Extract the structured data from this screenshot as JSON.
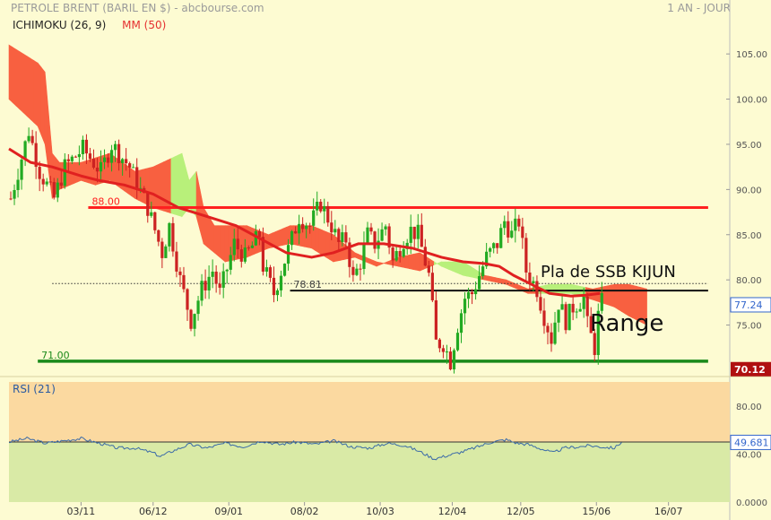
{
  "header": {
    "title": "PETROLE BRENT (BARIL EN $) - abcbourse.com",
    "period": "1 AN - JOUR"
  },
  "legend": {
    "ichimoku": "ICHIMOKU (26, 9)",
    "mm": "MM (50)"
  },
  "colors": {
    "background": "#fdfbd2",
    "kumo_bearish": "#f86040",
    "kumo_bullish": "#b8f07a",
    "ma50": "#e02020",
    "candle_up": "#22aa22",
    "candle_down": "#cc2222",
    "resistance_line": "#ff2020",
    "support_line": "#1a8a1a",
    "kijun_line": "#111111",
    "rsi_line": "#3a6aa8",
    "rsi_upper_zone": "#fbd9a0",
    "rsi_lower_zone": "#d9eaa6",
    "price_badge": "#3366cc",
    "support_badge": "#b01010"
  },
  "chart_data": [
    {
      "type": "candlestick",
      "title": "PETROLE BRENT (BARIL EN $) - abcbourse.com",
      "x_tick_labels": [
        "03/11",
        "06/12",
        "09/01",
        "08/02",
        "10/03",
        "12/04",
        "12/05",
        "15/06",
        "16/07"
      ],
      "y_ticks": [
        75,
        80,
        85,
        90,
        95,
        100,
        105
      ],
      "y_tick_labels": [
        "75.00",
        "80.00",
        "85.00",
        "90.00",
        "95.00",
        "100.00",
        "105.00"
      ],
      "ylim": [
        69.5,
        107
      ],
      "grid": true,
      "indicators": [
        "ICHIMOKU (26, 9)",
        "MM (50)"
      ],
      "price_anchors": [
        [
          0,
          89
        ],
        [
          3,
          93.5
        ],
        [
          5,
          96.5
        ],
        [
          8,
          92
        ],
        [
          12,
          89
        ],
        [
          15,
          92.5
        ],
        [
          20,
          94.5
        ],
        [
          25,
          92
        ],
        [
          28,
          95
        ],
        [
          33,
          92.5
        ],
        [
          38,
          88
        ],
        [
          42,
          83
        ],
        [
          44,
          86
        ],
        [
          47,
          80
        ],
        [
          50,
          75.5
        ],
        [
          53,
          79
        ],
        [
          56,
          81
        ],
        [
          58,
          78.5
        ],
        [
          62,
          84
        ],
        [
          65,
          82.5
        ],
        [
          69,
          85
        ],
        [
          70,
          81.5
        ],
        [
          73,
          78.5
        ],
        [
          75,
          81
        ],
        [
          78,
          84.5
        ],
        [
          80,
          87
        ],
        [
          83,
          86
        ],
        [
          86,
          88.5
        ],
        [
          89,
          86
        ],
        [
          91,
          84
        ],
        [
          93,
          84.5
        ],
        [
          95,
          80
        ],
        [
          97,
          82
        ],
        [
          99,
          85
        ],
        [
          101,
          84
        ],
        [
          104,
          86
        ],
        [
          106,
          82
        ],
        [
          109,
          84.5
        ],
        [
          111,
          85.5
        ],
        [
          113,
          85
        ],
        [
          116,
          80.5
        ],
        [
          118,
          73
        ],
        [
          120,
          73
        ],
        [
          122,
          71
        ],
        [
          124,
          75
        ],
        [
          126,
          78
        ],
        [
          128,
          78.5
        ],
        [
          130,
          80.5
        ],
        [
          132,
          82.5
        ],
        [
          135,
          84
        ],
        [
          137,
          86.5
        ],
        [
          139,
          85
        ],
        [
          141,
          86.5
        ],
        [
          143,
          81
        ],
        [
          146,
          79
        ],
        [
          148,
          76
        ],
        [
          150,
          73.5
        ],
        [
          152,
          77.5
        ],
        [
          154,
          75.5
        ],
        [
          156,
          77
        ],
        [
          159,
          78
        ],
        [
          160,
          75
        ],
        [
          162,
          72.5
        ],
        [
          163,
          76
        ],
        [
          164,
          77.5
        ]
      ],
      "ma50": [
        [
          0,
          94.5
        ],
        [
          6,
          93
        ],
        [
          12,
          92.5
        ],
        [
          20,
          91.5
        ],
        [
          25,
          91
        ],
        [
          32,
          90.5
        ],
        [
          40,
          89.5
        ],
        [
          47,
          88
        ],
        [
          55,
          87
        ],
        [
          63,
          86
        ],
        [
          70,
          84.5
        ],
        [
          77,
          83
        ],
        [
          84,
          82.5
        ],
        [
          90,
          83
        ],
        [
          97,
          84
        ],
        [
          104,
          84
        ],
        [
          112,
          83.5
        ],
        [
          120,
          82.5
        ],
        [
          126,
          82
        ],
        [
          132,
          81.8
        ],
        [
          136,
          81.5
        ],
        [
          140,
          80.5
        ],
        [
          145,
          79.5
        ],
        [
          150,
          78.5
        ],
        [
          156,
          78.2
        ],
        [
          160,
          78.3
        ],
        [
          164,
          78.5
        ]
      ],
      "kumo_top": [
        [
          0,
          106
        ],
        [
          8,
          104
        ],
        [
          10,
          103
        ],
        [
          12,
          94
        ],
        [
          14,
          93
        ],
        [
          20,
          93
        ],
        [
          24,
          93.5
        ],
        [
          28,
          94
        ],
        [
          35,
          92
        ],
        [
          40,
          92.5
        ],
        [
          48,
          94
        ],
        [
          50,
          91
        ],
        [
          52,
          92
        ],
        [
          54,
          88
        ],
        [
          57,
          86
        ],
        [
          60,
          86
        ],
        [
          66,
          86
        ],
        [
          72,
          85
        ],
        [
          78,
          86
        ],
        [
          84,
          86
        ],
        [
          90,
          85
        ],
        [
          96,
          83
        ],
        [
          102,
          82
        ],
        [
          108,
          81.5
        ],
        [
          114,
          81
        ],
        [
          120,
          82
        ],
        [
          126,
          82
        ],
        [
          132,
          80.5
        ],
        [
          138,
          80
        ],
        [
          144,
          79
        ],
        [
          150,
          79.5
        ],
        [
          156,
          79.5
        ],
        [
          162,
          79
        ],
        [
          168,
          79.5
        ],
        [
          172,
          79.5
        ],
        [
          177,
          79
        ]
      ],
      "kumo_bottom": [
        [
          0,
          100
        ],
        [
          8,
          97
        ],
        [
          10,
          95
        ],
        [
          12,
          89
        ],
        [
          14,
          90
        ],
        [
          20,
          91
        ],
        [
          24,
          90.5
        ],
        [
          28,
          91
        ],
        [
          35,
          89
        ],
        [
          40,
          88
        ],
        [
          48,
          87
        ],
        [
          50,
          88
        ],
        [
          52,
          87
        ],
        [
          54,
          84
        ],
        [
          57,
          83
        ],
        [
          60,
          82
        ],
        [
          66,
          82.5
        ],
        [
          72,
          83.5
        ],
        [
          78,
          84
        ],
        [
          84,
          83.5
        ],
        [
          90,
          82
        ],
        [
          96,
          82.5
        ],
        [
          102,
          81.5
        ],
        [
          108,
          82.5
        ],
        [
          114,
          83
        ],
        [
          120,
          81.5
        ],
        [
          126,
          80.5
        ],
        [
          132,
          80
        ],
        [
          138,
          79.5
        ],
        [
          144,
          78.5
        ],
        [
          150,
          78.5
        ],
        [
          156,
          78.5
        ],
        [
          162,
          77.8
        ],
        [
          168,
          77
        ],
        [
          172,
          76
        ],
        [
          177,
          75
        ]
      ],
      "levels": [
        {
          "label": "88.00",
          "value": 88,
          "from": 22,
          "to": 194
        },
        {
          "label": "78.81",
          "value": 78.81,
          "from": 78,
          "to": 194
        },
        {
          "label": "71.00",
          "value": 71,
          "from": 8,
          "to": 194
        }
      ],
      "dotted_level": {
        "value": 79.6,
        "from": 12,
        "to": 194
      },
      "current_price": "77.24",
      "support_value": "70.12",
      "annotations": {
        "kijun_text": "Pla de SSB KIJUN",
        "range_text": "Range"
      }
    },
    {
      "type": "line",
      "title": "RSI (21)",
      "y_ticks": [
        0,
        40,
        80
      ],
      "y_tick_labels": [
        "0.0000",
        "40.00",
        "80.00"
      ],
      "ylim": [
        0,
        100
      ],
      "upper_zone": [
        50,
        100
      ],
      "lower_zone": [
        0,
        50
      ],
      "rsi": [
        [
          0,
          50
        ],
        [
          5,
          53
        ],
        [
          10,
          49
        ],
        [
          15,
          51
        ],
        [
          20,
          53
        ],
        [
          25,
          49
        ],
        [
          30,
          45
        ],
        [
          35,
          45
        ],
        [
          40,
          41
        ],
        [
          42,
          38
        ],
        [
          45,
          42
        ],
        [
          50,
          48
        ],
        [
          55,
          45
        ],
        [
          60,
          49
        ],
        [
          65,
          46
        ],
        [
          70,
          51
        ],
        [
          75,
          48
        ],
        [
          80,
          50
        ],
        [
          85,
          48
        ],
        [
          90,
          51
        ],
        [
          95,
          46
        ],
        [
          100,
          45
        ],
        [
          105,
          49
        ],
        [
          110,
          47
        ],
        [
          114,
          42
        ],
        [
          118,
          36
        ],
        [
          122,
          39
        ],
        [
          126,
          42
        ],
        [
          130,
          46
        ],
        [
          134,
          50
        ],
        [
          138,
          52
        ],
        [
          141,
          49
        ],
        [
          144,
          48
        ],
        [
          148,
          44
        ],
        [
          151,
          41
        ],
        [
          154,
          45
        ],
        [
          158,
          46
        ],
        [
          161,
          47
        ],
        [
          164,
          46
        ],
        [
          168,
          45
        ],
        [
          170,
          50
        ]
      ],
      "current_value": "49.681"
    }
  ]
}
